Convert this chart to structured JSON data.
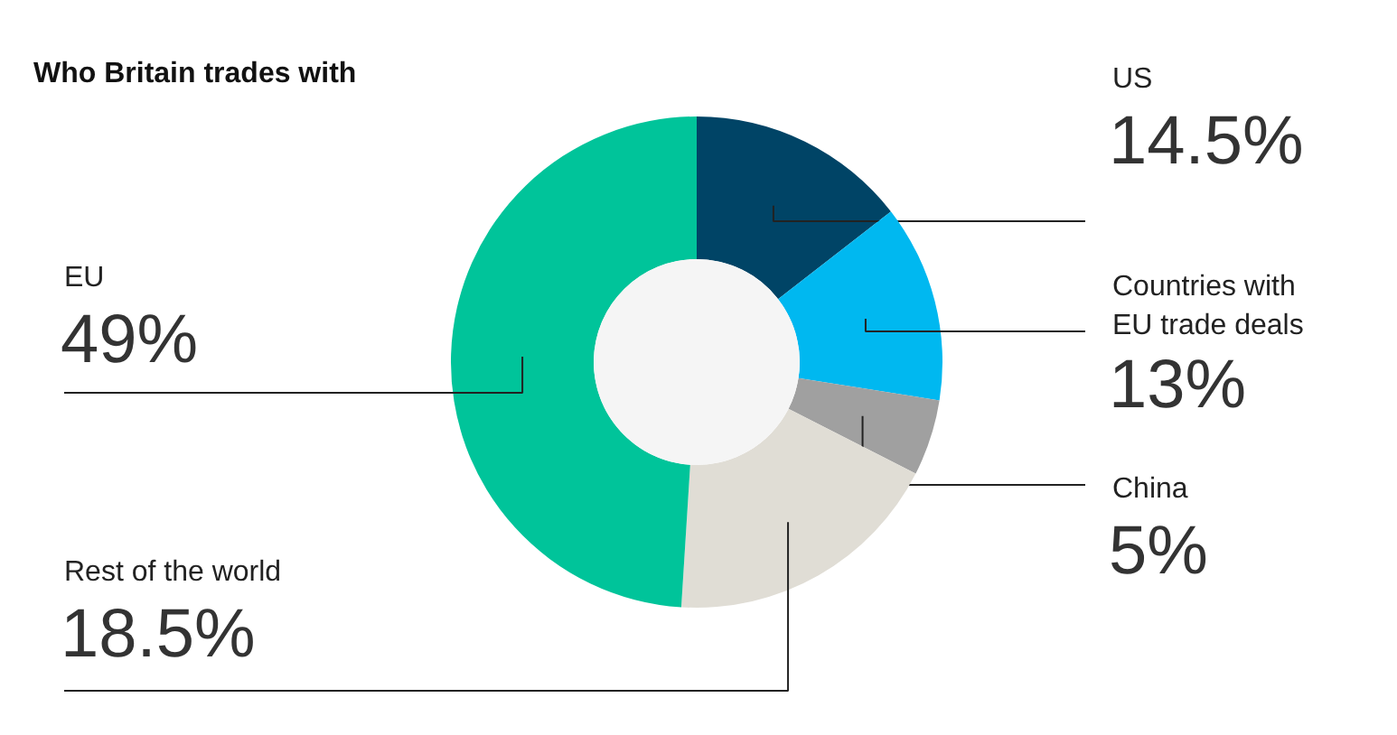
{
  "chart_data": {
    "type": "donut",
    "title": "Who Britain trades with",
    "categories": [
      "US",
      "Countries with\nEU trade deals",
      "China",
      "Rest of the world",
      "EU"
    ],
    "values": [
      14.5,
      13,
      5,
      18.5,
      49
    ],
    "colors": [
      "#004466",
      "#00b8f0",
      "#a0a0a0",
      "#e0ddd5",
      "#00c49a"
    ],
    "value_labels": [
      "14.5%",
      "13%",
      "5%",
      "18.5%",
      "49%"
    ]
  }
}
